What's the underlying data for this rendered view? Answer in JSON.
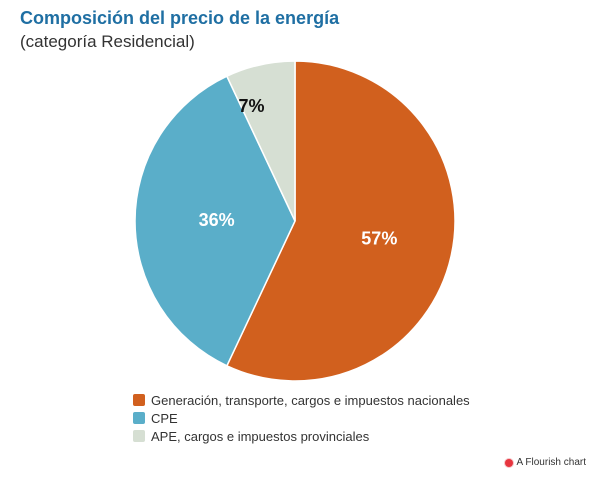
{
  "header": {
    "title": "Composición del precio de la energía",
    "subtitle": "(categoría Residencial)"
  },
  "chart_data": {
    "type": "pie",
    "categories": [
      "Generación, transporte, cargos e impuestos nacionales",
      "CPE",
      "APE, cargos e impuestos provinciales"
    ],
    "values": [
      57,
      36,
      7
    ],
    "labels": [
      "57%",
      "36%",
      "7%"
    ],
    "colors": [
      "#d1601e",
      "#5aaec9",
      "#d6dfd3"
    ],
    "label_colors": [
      "#ffffff",
      "#ffffff",
      "#111111"
    ],
    "legend_position": "bottom"
  },
  "footer": {
    "credit": "A Flourish chart",
    "icon": "flourish-icon"
  }
}
